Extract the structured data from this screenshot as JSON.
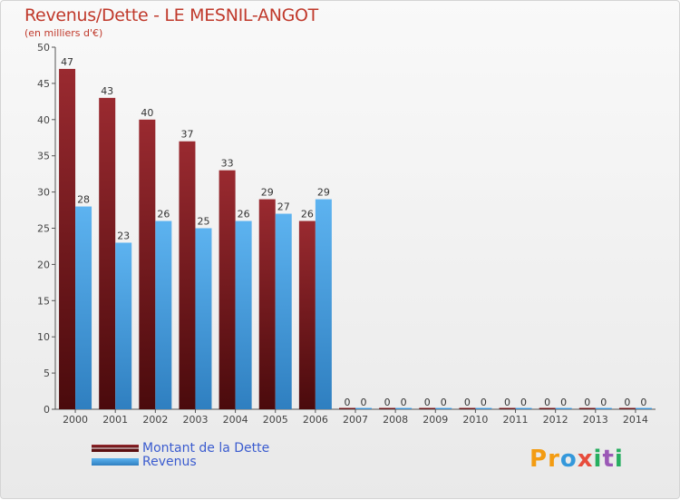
{
  "chart_data": {
    "type": "bar",
    "title": "Revenus/Dette - LE MESNIL-ANGOT",
    "subtitle": "(en milliers d'€)",
    "categories": [
      "2000",
      "2001",
      "2002",
      "2003",
      "2004",
      "2005",
      "2006",
      "2007",
      "2008",
      "2009",
      "2010",
      "2011",
      "2012",
      "2013",
      "2014"
    ],
    "series": [
      {
        "name": "Montant de la Dette",
        "color": "#7b1a1e",
        "values": [
          47,
          43,
          40,
          37,
          33,
          29,
          26,
          0,
          0,
          0,
          0,
          0,
          0,
          0,
          0
        ]
      },
      {
        "name": "Revenus",
        "color": "#4ca3e4",
        "values": [
          28,
          23,
          26,
          25,
          26,
          27,
          29,
          0,
          0,
          0,
          0,
          0,
          0,
          0,
          0
        ]
      }
    ],
    "ylim": [
      0,
      50
    ],
    "yticks": [
      0,
      5,
      10,
      15,
      20,
      25,
      30,
      35,
      40,
      45,
      50
    ],
    "grid": false,
    "legend": "bottom-left"
  },
  "branding": {
    "logo_text": "Proxiti",
    "letters": [
      {
        "ch": "P",
        "color": "#f39c12"
      },
      {
        "ch": "r",
        "color": "#f39c12"
      },
      {
        "ch": "o",
        "color": "#3498db"
      },
      {
        "ch": "x",
        "color": "#e74c3c"
      },
      {
        "ch": "i",
        "color": "#27ae60"
      },
      {
        "ch": "t",
        "color": "#9b59b6"
      },
      {
        "ch": "i",
        "color": "#27ae60"
      }
    ]
  }
}
